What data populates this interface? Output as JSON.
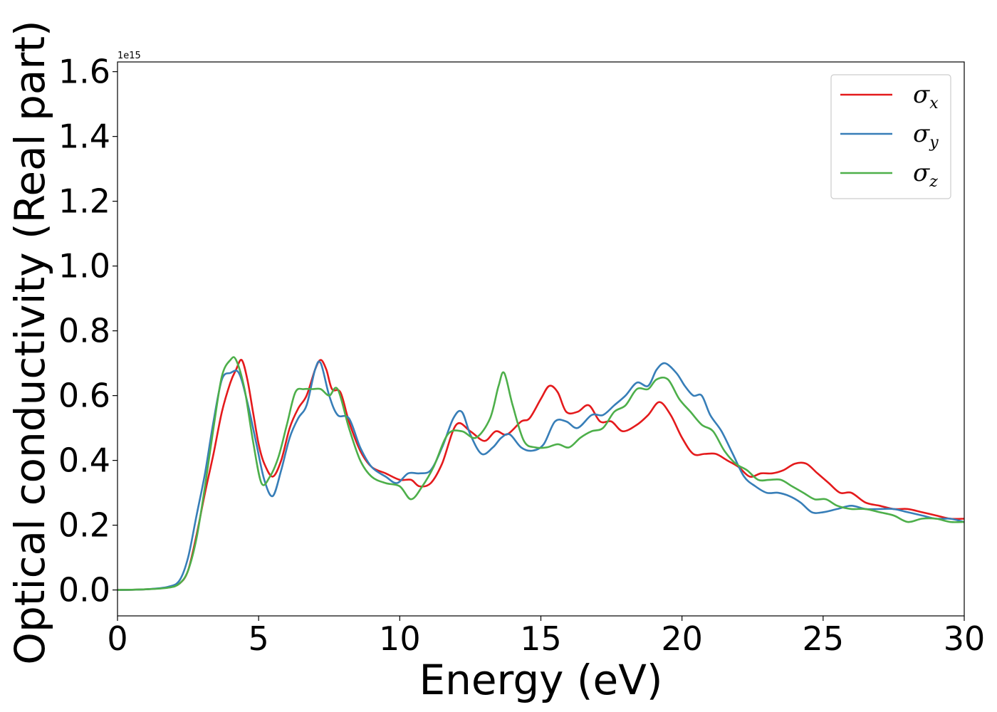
{
  "chart_data": {
    "type": "line",
    "xlabel": "Energy (eV)",
    "ylabel": "Optical conductivity (Real part)",
    "y_offset_text": "1e15",
    "xlim": [
      0,
      30
    ],
    "ylim": [
      -0.08,
      1.63
    ],
    "x_ticks": [
      0,
      5,
      10,
      15,
      20,
      25,
      30
    ],
    "x_tick_labels": [
      "0",
      "5",
      "10",
      "15",
      "20",
      "25",
      "30"
    ],
    "y_ticks": [
      0.0,
      0.2,
      0.4,
      0.6,
      0.8,
      1.0,
      1.2,
      1.4,
      1.6
    ],
    "y_tick_labels": [
      "0.0",
      "0.2",
      "0.4",
      "0.6",
      "0.8",
      "1.0",
      "1.2",
      "1.4",
      "1.6"
    ],
    "grid": false,
    "legend_position": "top-right",
    "series": [
      {
        "name": "σx",
        "symbol": "σ",
        "subscript": "x",
        "color": "#e41a1c",
        "points": [
          [
            0,
            0
          ],
          [
            1,
            0.002
          ],
          [
            1.8,
            0.008
          ],
          [
            2.2,
            0.02
          ],
          [
            2.5,
            0.06
          ],
          [
            2.8,
            0.17
          ],
          [
            3.1,
            0.3
          ],
          [
            3.4,
            0.42
          ],
          [
            3.7,
            0.55
          ],
          [
            4.0,
            0.64
          ],
          [
            4.2,
            0.68
          ],
          [
            4.4,
            0.71
          ],
          [
            4.6,
            0.65
          ],
          [
            4.8,
            0.55
          ],
          [
            5.0,
            0.45
          ],
          [
            5.2,
            0.39
          ],
          [
            5.5,
            0.35
          ],
          [
            5.8,
            0.4
          ],
          [
            6.1,
            0.5
          ],
          [
            6.4,
            0.56
          ],
          [
            6.7,
            0.6
          ],
          [
            7.0,
            0.68
          ],
          [
            7.2,
            0.71
          ],
          [
            7.4,
            0.68
          ],
          [
            7.6,
            0.62
          ],
          [
            7.9,
            0.61
          ],
          [
            8.2,
            0.52
          ],
          [
            8.6,
            0.43
          ],
          [
            9.0,
            0.38
          ],
          [
            9.5,
            0.36
          ],
          [
            10.0,
            0.34
          ],
          [
            10.4,
            0.34
          ],
          [
            10.7,
            0.32
          ],
          [
            11.1,
            0.33
          ],
          [
            11.5,
            0.39
          ],
          [
            12.0,
            0.51
          ],
          [
            12.5,
            0.49
          ],
          [
            13.0,
            0.46
          ],
          [
            13.4,
            0.49
          ],
          [
            13.8,
            0.48
          ],
          [
            14.3,
            0.52
          ],
          [
            14.6,
            0.53
          ],
          [
            15.0,
            0.59
          ],
          [
            15.3,
            0.63
          ],
          [
            15.6,
            0.61
          ],
          [
            15.9,
            0.55
          ],
          [
            16.3,
            0.55
          ],
          [
            16.7,
            0.57
          ],
          [
            17.1,
            0.52
          ],
          [
            17.5,
            0.52
          ],
          [
            17.9,
            0.49
          ],
          [
            18.4,
            0.51
          ],
          [
            18.8,
            0.54
          ],
          [
            19.2,
            0.58
          ],
          [
            19.6,
            0.54
          ],
          [
            20.0,
            0.47
          ],
          [
            20.4,
            0.42
          ],
          [
            20.8,
            0.42
          ],
          [
            21.2,
            0.42
          ],
          [
            21.6,
            0.4
          ],
          [
            22.0,
            0.38
          ],
          [
            22.4,
            0.35
          ],
          [
            22.8,
            0.36
          ],
          [
            23.2,
            0.36
          ],
          [
            23.6,
            0.37
          ],
          [
            24.0,
            0.39
          ],
          [
            24.4,
            0.39
          ],
          [
            24.8,
            0.36
          ],
          [
            25.2,
            0.33
          ],
          [
            25.6,
            0.3
          ],
          [
            26.0,
            0.3
          ],
          [
            26.5,
            0.27
          ],
          [
            27.0,
            0.26
          ],
          [
            27.5,
            0.25
          ],
          [
            28.0,
            0.25
          ],
          [
            28.5,
            0.24
          ],
          [
            29.0,
            0.23
          ],
          [
            29.5,
            0.22
          ],
          [
            30.0,
            0.22
          ]
        ]
      },
      {
        "name": "σy",
        "symbol": "σ",
        "subscript": "y",
        "color": "#377eb8",
        "points": [
          [
            0,
            0
          ],
          [
            1,
            0.002
          ],
          [
            1.8,
            0.01
          ],
          [
            2.2,
            0.03
          ],
          [
            2.5,
            0.1
          ],
          [
            2.8,
            0.23
          ],
          [
            3.1,
            0.36
          ],
          [
            3.4,
            0.52
          ],
          [
            3.7,
            0.65
          ],
          [
            4.0,
            0.67
          ],
          [
            4.3,
            0.67
          ],
          [
            4.6,
            0.58
          ],
          [
            4.9,
            0.46
          ],
          [
            5.2,
            0.34
          ],
          [
            5.5,
            0.29
          ],
          [
            5.8,
            0.37
          ],
          [
            6.1,
            0.47
          ],
          [
            6.4,
            0.53
          ],
          [
            6.7,
            0.57
          ],
          [
            7.0,
            0.68
          ],
          [
            7.2,
            0.7
          ],
          [
            7.5,
            0.6
          ],
          [
            7.8,
            0.54
          ],
          [
            8.2,
            0.53
          ],
          [
            8.6,
            0.44
          ],
          [
            9.0,
            0.38
          ],
          [
            9.5,
            0.35
          ],
          [
            9.9,
            0.33
          ],
          [
            10.3,
            0.36
          ],
          [
            10.7,
            0.36
          ],
          [
            11.1,
            0.37
          ],
          [
            11.5,
            0.44
          ],
          [
            11.9,
            0.53
          ],
          [
            12.2,
            0.55
          ],
          [
            12.5,
            0.48
          ],
          [
            12.9,
            0.42
          ],
          [
            13.3,
            0.44
          ],
          [
            13.6,
            0.47
          ],
          [
            13.9,
            0.48
          ],
          [
            14.3,
            0.44
          ],
          [
            14.7,
            0.43
          ],
          [
            15.1,
            0.45
          ],
          [
            15.5,
            0.52
          ],
          [
            15.9,
            0.52
          ],
          [
            16.3,
            0.5
          ],
          [
            16.8,
            0.54
          ],
          [
            17.2,
            0.54
          ],
          [
            17.6,
            0.57
          ],
          [
            18.0,
            0.6
          ],
          [
            18.4,
            0.64
          ],
          [
            18.8,
            0.63
          ],
          [
            19.1,
            0.68
          ],
          [
            19.4,
            0.7
          ],
          [
            19.8,
            0.67
          ],
          [
            20.1,
            0.63
          ],
          [
            20.4,
            0.6
          ],
          [
            20.7,
            0.6
          ],
          [
            21.0,
            0.54
          ],
          [
            21.4,
            0.49
          ],
          [
            21.8,
            0.42
          ],
          [
            22.2,
            0.35
          ],
          [
            22.6,
            0.32
          ],
          [
            23.0,
            0.3
          ],
          [
            23.4,
            0.3
          ],
          [
            23.8,
            0.29
          ],
          [
            24.2,
            0.27
          ],
          [
            24.6,
            0.24
          ],
          [
            25.0,
            0.24
          ],
          [
            25.5,
            0.25
          ],
          [
            26.0,
            0.26
          ],
          [
            26.5,
            0.25
          ],
          [
            27.0,
            0.25
          ],
          [
            27.5,
            0.25
          ],
          [
            28.0,
            0.24
          ],
          [
            28.5,
            0.23
          ],
          [
            29.0,
            0.22
          ],
          [
            29.5,
            0.22
          ],
          [
            30.0,
            0.21
          ]
        ]
      },
      {
        "name": "σz",
        "symbol": "σ",
        "subscript": "z",
        "color": "#4daf4a",
        "points": [
          [
            0,
            0
          ],
          [
            1,
            0.002
          ],
          [
            1.8,
            0.007
          ],
          [
            2.2,
            0.02
          ],
          [
            2.5,
            0.06
          ],
          [
            2.8,
            0.16
          ],
          [
            3.1,
            0.32
          ],
          [
            3.4,
            0.5
          ],
          [
            3.7,
            0.66
          ],
          [
            4.0,
            0.71
          ],
          [
            4.2,
            0.71
          ],
          [
            4.5,
            0.62
          ],
          [
            4.8,
            0.46
          ],
          [
            5.1,
            0.33
          ],
          [
            5.4,
            0.35
          ],
          [
            5.7,
            0.41
          ],
          [
            6.0,
            0.51
          ],
          [
            6.3,
            0.61
          ],
          [
            6.6,
            0.62
          ],
          [
            6.9,
            0.62
          ],
          [
            7.2,
            0.62
          ],
          [
            7.5,
            0.6
          ],
          [
            7.8,
            0.62
          ],
          [
            8.2,
            0.5
          ],
          [
            8.6,
            0.4
          ],
          [
            9.0,
            0.35
          ],
          [
            9.5,
            0.33
          ],
          [
            10.0,
            0.32
          ],
          [
            10.4,
            0.28
          ],
          [
            10.8,
            0.32
          ],
          [
            11.2,
            0.38
          ],
          [
            11.7,
            0.48
          ],
          [
            12.2,
            0.49
          ],
          [
            12.7,
            0.47
          ],
          [
            13.2,
            0.53
          ],
          [
            13.5,
            0.63
          ],
          [
            13.7,
            0.67
          ],
          [
            14.0,
            0.57
          ],
          [
            14.4,
            0.46
          ],
          [
            14.8,
            0.44
          ],
          [
            15.2,
            0.44
          ],
          [
            15.6,
            0.45
          ],
          [
            16.0,
            0.44
          ],
          [
            16.4,
            0.47
          ],
          [
            16.8,
            0.49
          ],
          [
            17.2,
            0.5
          ],
          [
            17.6,
            0.55
          ],
          [
            18.0,
            0.57
          ],
          [
            18.4,
            0.62
          ],
          [
            18.8,
            0.62
          ],
          [
            19.1,
            0.65
          ],
          [
            19.5,
            0.65
          ],
          [
            19.9,
            0.59
          ],
          [
            20.3,
            0.55
          ],
          [
            20.7,
            0.51
          ],
          [
            21.1,
            0.49
          ],
          [
            21.5,
            0.43
          ],
          [
            21.9,
            0.39
          ],
          [
            22.3,
            0.37
          ],
          [
            22.7,
            0.34
          ],
          [
            23.1,
            0.34
          ],
          [
            23.5,
            0.34
          ],
          [
            23.9,
            0.32
          ],
          [
            24.3,
            0.3
          ],
          [
            24.7,
            0.28
          ],
          [
            25.1,
            0.28
          ],
          [
            25.5,
            0.26
          ],
          [
            26.0,
            0.25
          ],
          [
            26.5,
            0.25
          ],
          [
            27.0,
            0.24
          ],
          [
            27.5,
            0.23
          ],
          [
            28.0,
            0.21
          ],
          [
            28.5,
            0.22
          ],
          [
            29.0,
            0.22
          ],
          [
            29.5,
            0.21
          ],
          [
            30.0,
            0.21
          ]
        ]
      }
    ]
  }
}
